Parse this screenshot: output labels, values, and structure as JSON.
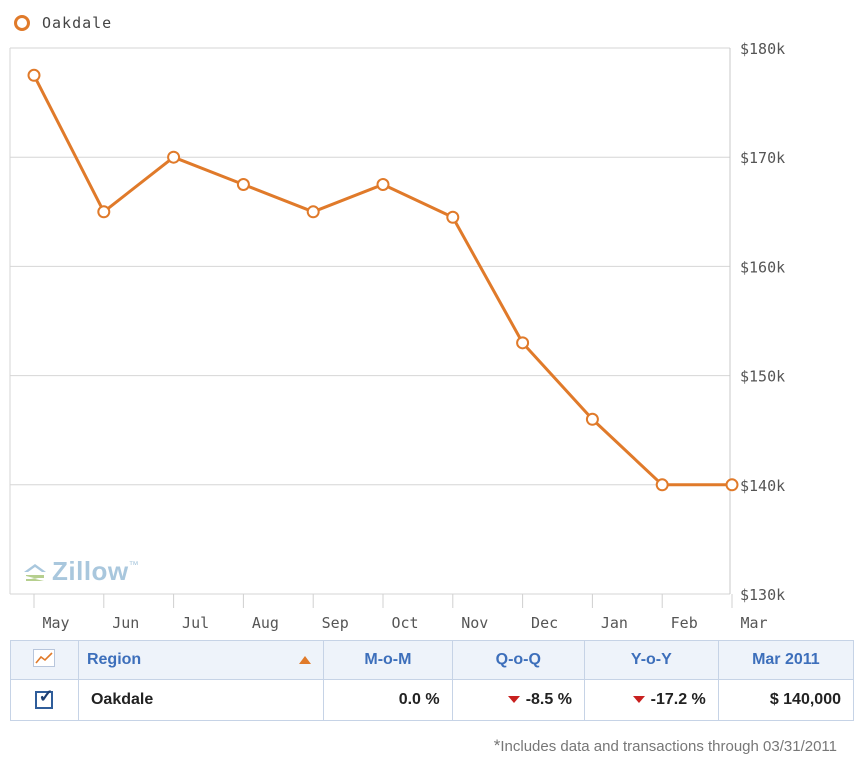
{
  "legend": {
    "label": "Oakdale",
    "color": "#e07a2a"
  },
  "logo": {
    "text": "Zillow",
    "mark": "™"
  },
  "chart_data": {
    "type": "line",
    "x": [
      "May",
      "Jun",
      "Jul",
      "Aug",
      "Sep",
      "Oct",
      "Nov",
      "Dec",
      "Jan",
      "Feb",
      "Mar"
    ],
    "series": [
      {
        "name": "Oakdale",
        "color": "#e07a2a",
        "values": [
          177500,
          165000,
          170000,
          167500,
          165000,
          167500,
          164500,
          153000,
          146000,
          140000,
          140000
        ]
      }
    ],
    "ylim": [
      130000,
      180000
    ],
    "yticks": [
      180000,
      170000,
      160000,
      150000,
      140000,
      130000
    ],
    "ytick_labels": [
      "$180k",
      "$170k",
      "$160k",
      "$150k",
      "$140k",
      "$130k"
    ],
    "y_axis_side": "right",
    "grid": true,
    "legend_position": "top-left"
  },
  "table": {
    "headers": {
      "region": "Region",
      "mom": "M-o-M",
      "qoq": "Q-o-Q",
      "yoy": "Y-o-Y",
      "value": "Mar 2011"
    },
    "row": {
      "checked": true,
      "region": "Oakdale",
      "mom": "0.0  %",
      "qoq": "-8.5  %",
      "yoy": "-17.2  %",
      "value": "$  140,000",
      "qoq_trend": "down",
      "yoy_trend": "down"
    }
  },
  "footnote": {
    "star": "*",
    "text": "Includes data and transactions through 03/31/2011"
  }
}
